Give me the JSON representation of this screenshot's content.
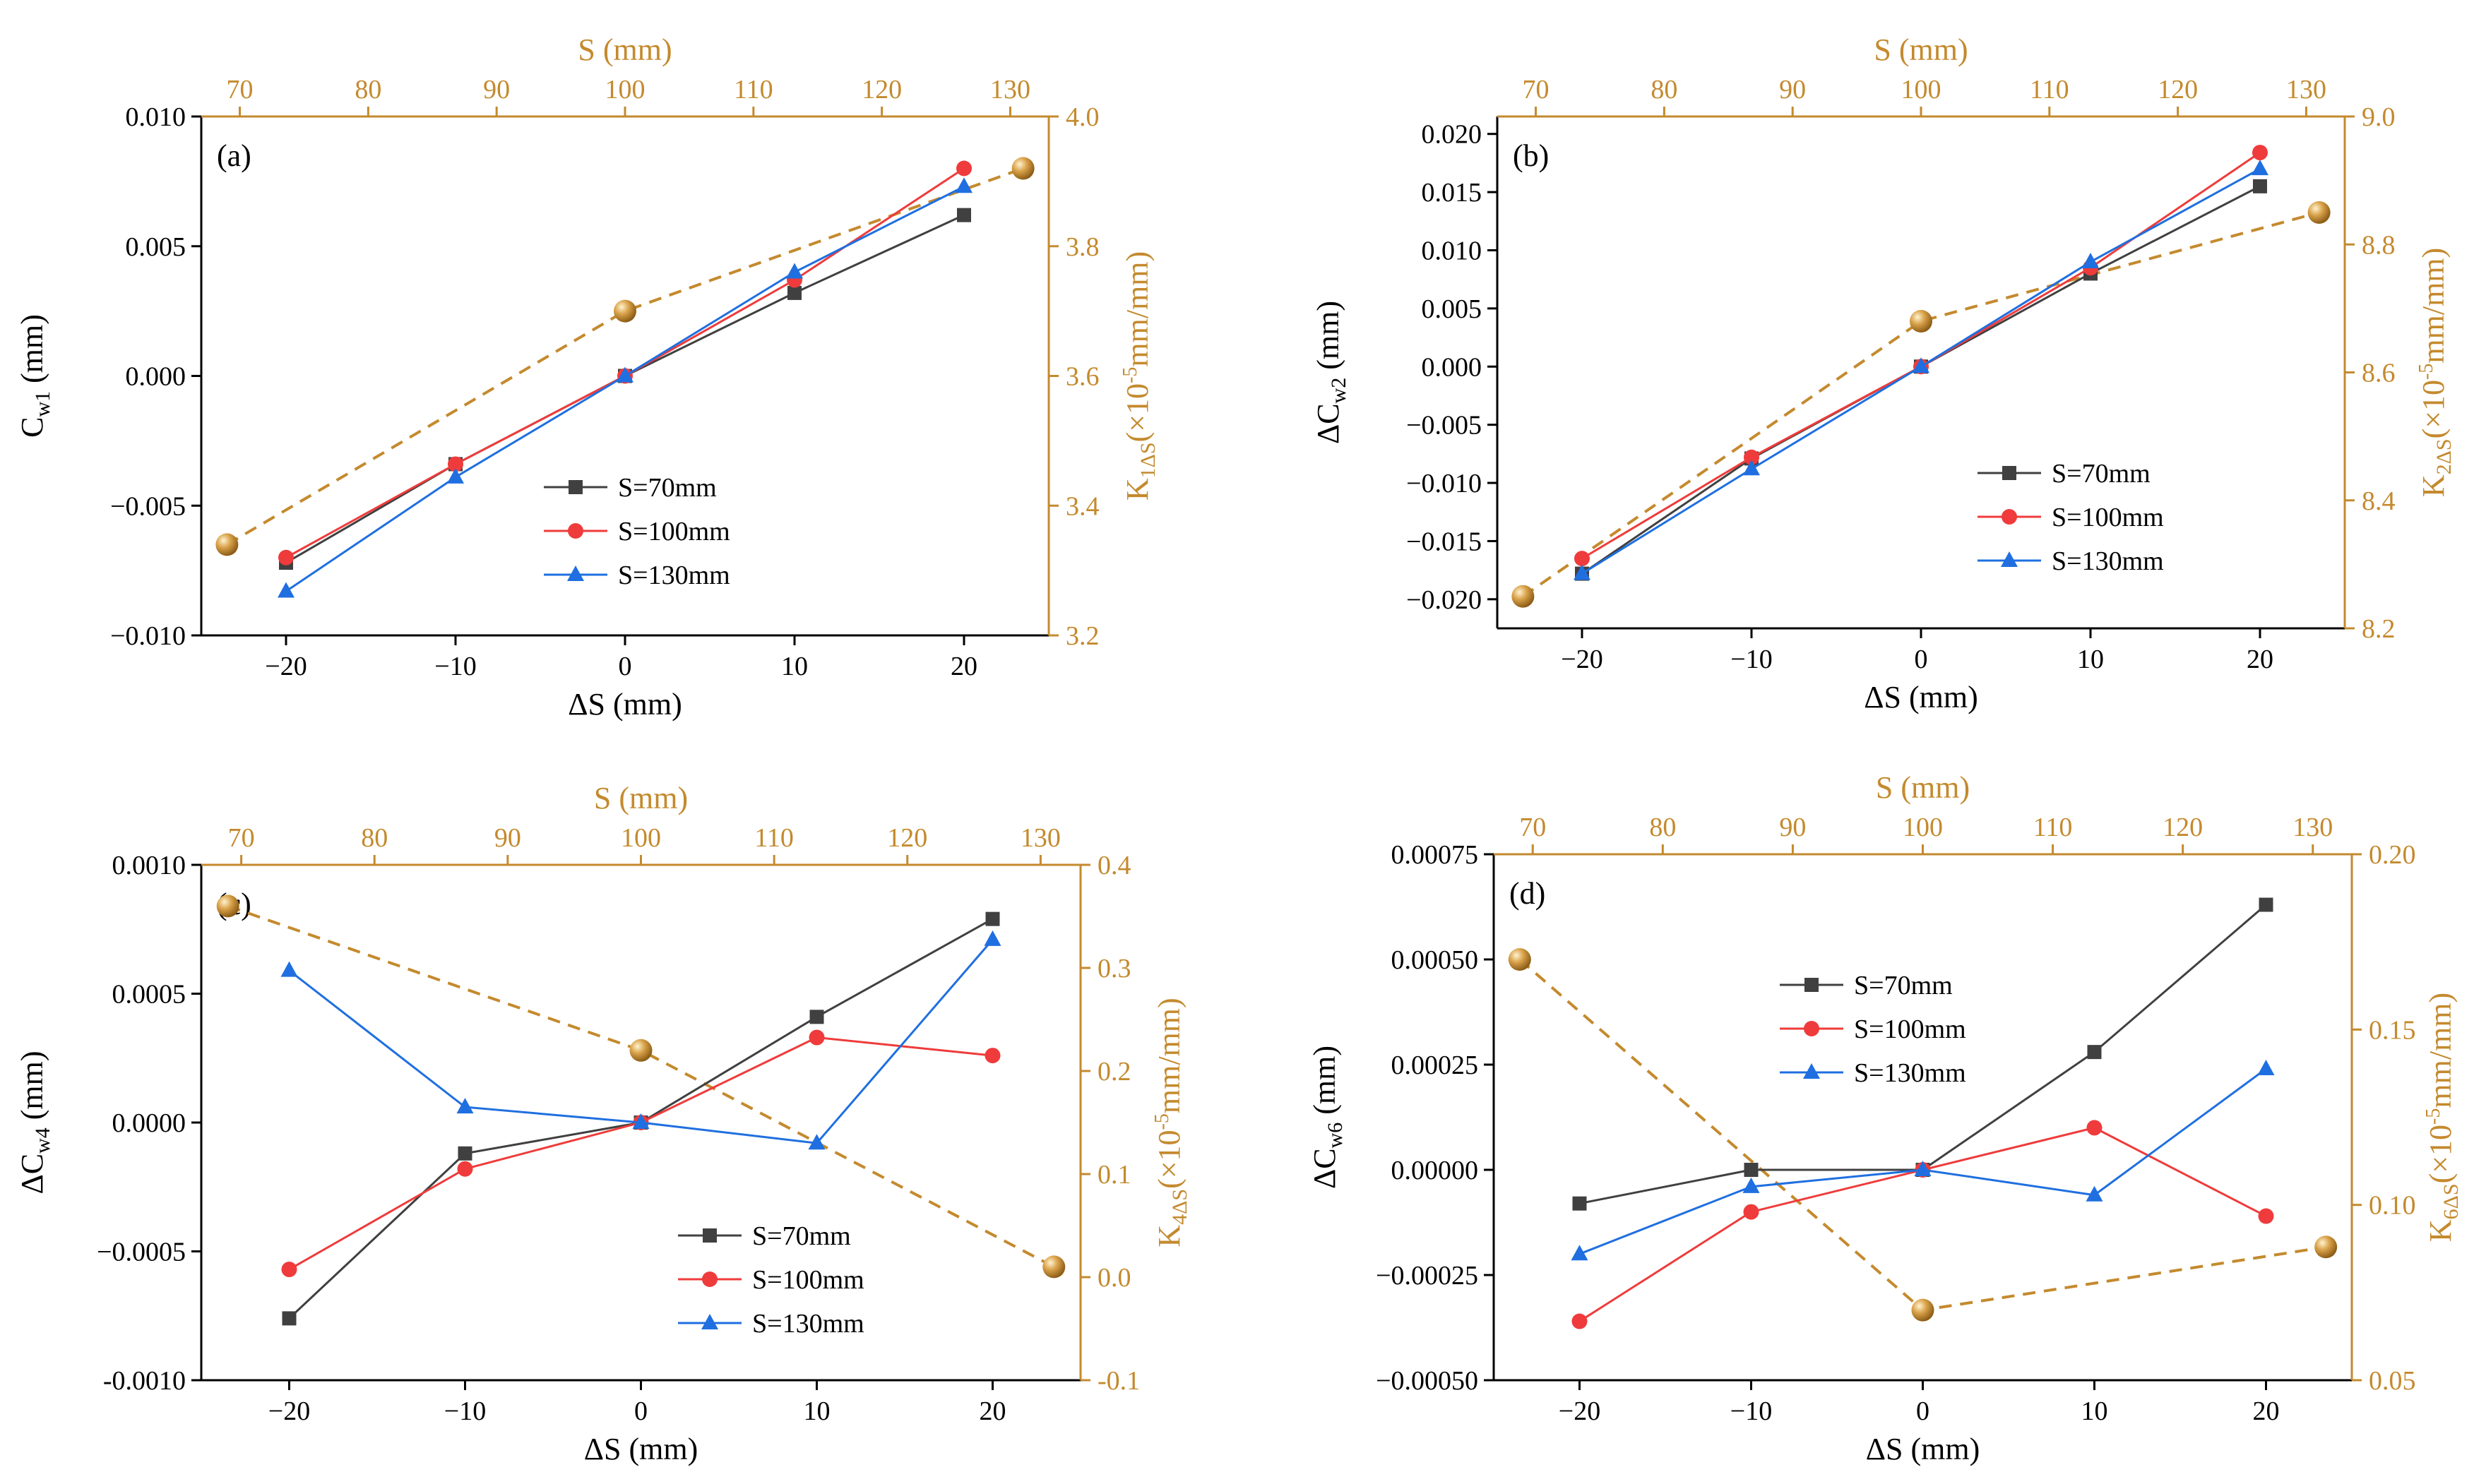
{
  "colors": {
    "s70": "#404040",
    "s100": "#ef3b3b",
    "s130": "#1f6fe0",
    "accent": "#c48a2e",
    "axis": "#000000"
  },
  "chart_data": [
    {
      "panel_label": "(a)",
      "type": "line",
      "xlabel": "ΔS (mm)",
      "ylabel": "C",
      "ylabel_sub": "w1",
      "ylabel_tail": " (mm)",
      "top_xlabel": "S (mm)",
      "right_ylabel": "K",
      "right_ylabel_sub": "1ΔS",
      "right_ylabel_tail": "(×10",
      "right_ylabel_sup": "-5",
      "right_ylabel_end": "mm/mm)",
      "xlim": [
        -25,
        25
      ],
      "ylim": [
        -0.01,
        0.01
      ],
      "x_ticks": [
        -20,
        -10,
        0,
        10,
        20
      ],
      "x_tick_labels": [
        "−20",
        "−10",
        "0",
        "10",
        "20"
      ],
      "y_ticks": [
        -0.01,
        -0.005,
        0,
        0.005,
        0.01
      ],
      "y_tick_labels": [
        "−0.010",
        "−0.005",
        "0.000",
        "0.005",
        "0.010"
      ],
      "top_xlim": [
        67,
        133
      ],
      "top_ticks": [
        70,
        80,
        90,
        100,
        110,
        120,
        130
      ],
      "top_tick_labels": [
        "70",
        "80",
        "90",
        "100",
        "110",
        "120",
        "130"
      ],
      "right_ylim": [
        3.2,
        4.0
      ],
      "right_ticks": [
        3.2,
        3.4,
        3.6,
        3.8,
        4.0
      ],
      "right_tick_labels": [
        "3.2",
        "3.4",
        "3.6",
        "3.8",
        "4.0"
      ],
      "legend_position": "center",
      "x": [
        -20,
        -10,
        0,
        10,
        20
      ],
      "series": [
        {
          "name": "S=70mm",
          "marker": "square",
          "values": [
            -0.0072,
            -0.0034,
            0.0,
            0.0032,
            0.0062
          ]
        },
        {
          "name": "S=100mm",
          "marker": "circle",
          "values": [
            -0.007,
            -0.0034,
            0.0,
            0.0037,
            0.008
          ]
        },
        {
          "name": "S=130mm",
          "marker": "triangle",
          "values": [
            -0.0083,
            -0.0039,
            0.0,
            0.004,
            0.0073
          ]
        }
      ],
      "k_series": {
        "name": "K1ΔS",
        "s": [
          69,
          100,
          131
        ],
        "values": [
          3.34,
          3.7,
          3.92
        ]
      }
    },
    {
      "panel_label": "(b)",
      "type": "line",
      "xlabel": "ΔS (mm)",
      "ylabel": "ΔC",
      "ylabel_sub": "w2",
      "ylabel_tail": " (mm)",
      "top_xlabel": "S (mm)",
      "right_ylabel": "K",
      "right_ylabel_sub": "2ΔS",
      "right_ylabel_tail": "(×10",
      "right_ylabel_sup": "-5",
      "right_ylabel_end": "mm/mm)",
      "xlim": [
        -25,
        25
      ],
      "ylim": [
        -0.0225,
        0.0215
      ],
      "x_ticks": [
        -20,
        -10,
        0,
        10,
        20
      ],
      "x_tick_labels": [
        "−20",
        "−10",
        "0",
        "10",
        "20"
      ],
      "y_ticks": [
        -0.02,
        -0.015,
        -0.01,
        -0.005,
        0,
        0.005,
        0.01,
        0.015,
        0.02
      ],
      "y_tick_labels": [
        "−0.020",
        "−0.015",
        "−0.010",
        "−0.005",
        "0.000",
        "0.005",
        "0.010",
        "0.015",
        "0.020"
      ],
      "top_xlim": [
        67,
        133
      ],
      "top_ticks": [
        70,
        80,
        90,
        100,
        110,
        120,
        130
      ],
      "top_tick_labels": [
        "70",
        "80",
        "90",
        "100",
        "110",
        "120",
        "130"
      ],
      "right_ylim": [
        8.2,
        9.0
      ],
      "right_ticks": [
        8.2,
        8.4,
        8.6,
        8.8,
        9.0
      ],
      "right_tick_labels": [
        "8.2",
        "8.4",
        "8.6",
        "8.8",
        "9.0"
      ],
      "legend_position": "center-right",
      "x": [
        -20,
        -10,
        0,
        10,
        20
      ],
      "series": [
        {
          "name": "S=70mm",
          "marker": "square",
          "values": [
            -0.0178,
            -0.0079,
            0.0,
            0.008,
            0.0155
          ]
        },
        {
          "name": "S=100mm",
          "marker": "circle",
          "values": [
            -0.0165,
            -0.0078,
            0.0,
            0.0085,
            0.0184
          ]
        },
        {
          "name": "S=130mm",
          "marker": "triangle",
          "values": [
            -0.0178,
            -0.0088,
            0.0,
            0.009,
            0.017
          ]
        }
      ],
      "k_series": {
        "name": "K2ΔS",
        "s": [
          69,
          100,
          131
        ],
        "values": [
          8.25,
          8.68,
          8.85
        ]
      }
    },
    {
      "panel_label": "(c)",
      "type": "line",
      "xlabel": "ΔS (mm)",
      "ylabel": "ΔC",
      "ylabel_sub": "w4",
      "ylabel_tail": " (mm)",
      "top_xlabel": "S (mm)",
      "right_ylabel": "K",
      "right_ylabel_sub": "4ΔS",
      "right_ylabel_tail": "(×10",
      "right_ylabel_sup": "-5",
      "right_ylabel_end": "mm/mm)",
      "xlim": [
        -25,
        25
      ],
      "ylim": [
        -0.001,
        0.001
      ],
      "x_ticks": [
        -20,
        -10,
        0,
        10,
        20
      ],
      "x_tick_labels": [
        "−20",
        "−10",
        "0",
        "10",
        "20"
      ],
      "y_ticks": [
        -0.001,
        -0.0005,
        0,
        0.0005,
        0.001
      ],
      "y_tick_labels": [
        "-0.0010",
        "−0.0005",
        "0.0000",
        "0.0005",
        "0.0010"
      ],
      "top_xlim": [
        67,
        133
      ],
      "top_ticks": [
        70,
        80,
        90,
        100,
        110,
        120,
        130
      ],
      "top_tick_labels": [
        "70",
        "80",
        "90",
        "100",
        "110",
        "120",
        "130"
      ],
      "right_ylim": [
        -0.1,
        0.4
      ],
      "right_ticks": [
        -0.1,
        0.0,
        0.1,
        0.2,
        0.3,
        0.4
      ],
      "right_tick_labels": [
        "-0.1",
        "0.0",
        "0.1",
        "0.2",
        "0.3",
        "0.4"
      ],
      "legend_position": "bottom-right",
      "x": [
        -20,
        -10,
        0,
        10,
        20
      ],
      "series": [
        {
          "name": "S=70mm",
          "marker": "square",
          "values": [
            -0.00076,
            -0.00012,
            0.0,
            0.00041,
            0.00079
          ]
        },
        {
          "name": "S=100mm",
          "marker": "circle",
          "values": [
            -0.00057,
            -0.00018,
            0.0,
            0.00033,
            0.00026
          ]
        },
        {
          "name": "S=130mm",
          "marker": "triangle",
          "values": [
            0.00059,
            6e-05,
            0.0,
            -8e-05,
            0.00071
          ]
        }
      ],
      "k_series": {
        "name": "K4ΔS",
        "s": [
          69,
          100,
          131
        ],
        "values": [
          0.36,
          0.22,
          0.01
        ]
      }
    },
    {
      "panel_label": "(d)",
      "type": "line",
      "xlabel": "ΔS (mm)",
      "ylabel": "ΔC",
      "ylabel_sub": "w6",
      "ylabel_tail": " (mm)",
      "top_xlabel": "S (mm)",
      "right_ylabel": "K",
      "right_ylabel_sub": "6ΔS",
      "right_ylabel_tail": "(×10",
      "right_ylabel_sup": "-5",
      "right_ylabel_end": "mm/mm)",
      "xlim": [
        -25,
        25
      ],
      "ylim": [
        -0.0005,
        0.00075
      ],
      "x_ticks": [
        -20,
        -10,
        0,
        10,
        20
      ],
      "x_tick_labels": [
        "−20",
        "−10",
        "0",
        "10",
        "20"
      ],
      "y_ticks": [
        -0.0005,
        -0.00025,
        0,
        0.00025,
        0.0005,
        0.00075
      ],
      "y_tick_labels": [
        "−0.00050",
        "−0.00025",
        "0.00000",
        "0.00025",
        "0.00050",
        "0.00075"
      ],
      "top_xlim": [
        67,
        133
      ],
      "top_ticks": [
        70,
        80,
        90,
        100,
        110,
        120,
        130
      ],
      "top_tick_labels": [
        "70",
        "80",
        "90",
        "100",
        "110",
        "120",
        "130"
      ],
      "right_ylim": [
        0.05,
        0.2
      ],
      "right_ticks": [
        0.05,
        0.1,
        0.15,
        0.2
      ],
      "right_tick_labels": [
        "0.05",
        "0.10",
        "0.15",
        "0.20"
      ],
      "legend_position": "top-left",
      "x": [
        -20,
        -10,
        0,
        10,
        20
      ],
      "series": [
        {
          "name": "S=70mm",
          "marker": "square",
          "values": [
            -8e-05,
            0.0,
            0.0,
            0.00028,
            0.00063
          ]
        },
        {
          "name": "S=100mm",
          "marker": "circle",
          "values": [
            -0.00036,
            -0.0001,
            0.0,
            0.0001,
            -0.00011
          ]
        },
        {
          "name": "S=130mm",
          "marker": "triangle",
          "values": [
            -0.0002,
            -4e-05,
            0.0,
            -6e-05,
            0.00024
          ]
        }
      ],
      "k_series": {
        "name": "K6ΔS",
        "s": [
          69,
          100,
          131
        ],
        "values": [
          0.17,
          0.07,
          0.088
        ]
      }
    }
  ]
}
